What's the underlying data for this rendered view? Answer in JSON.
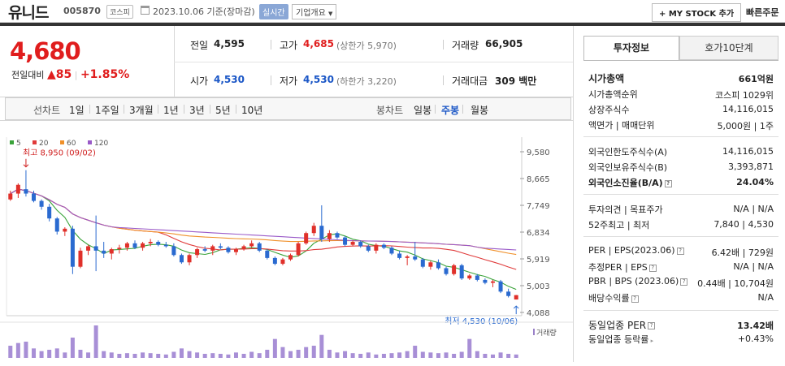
{
  "header": {
    "name": "유니드",
    "code": "005870",
    "market": "코스피",
    "date": "2023.10.06 기준(장마감)",
    "realtime": "실시간",
    "company": "기업개요",
    "mystock": "+ MY STOCK 추가",
    "quick": "빠른주문"
  },
  "price": {
    "current": "4,680",
    "diff_label": "전일대비",
    "diff": "▲85",
    "rate": "+1.85%"
  },
  "summary": {
    "prev_label": "전일",
    "prev": "4,595",
    "high_label": "고가",
    "high": "4,685",
    "upper": "(상한가 5,970)",
    "vol_label": "거래량",
    "vol": "66,905",
    "open_label": "시가",
    "open": "4,530",
    "low_label": "저가",
    "low": "4,530",
    "lower": "(하한가 3,220)",
    "amt_label": "거래대금",
    "amt": "309 백만"
  },
  "tabs": {
    "line": "선차트",
    "d1": "1일",
    "w1": "1주일",
    "m3": "3개월",
    "y1": "1년",
    "y3": "3년",
    "y5": "5년",
    "y10": "10년",
    "candle": "봉차트",
    "daily": "일봉",
    "weekly": "주봉",
    "monthly": "월봉"
  },
  "chart_data": {
    "type": "candlestick",
    "legend": [
      "5",
      "20",
      "60",
      "120"
    ],
    "legend_colors": [
      "#3aa33a",
      "#e03a3a",
      "#f0902a",
      "#9a5ac8"
    ],
    "yticks": [
      "9,580",
      "8,665",
      "7,749",
      "6,834",
      "5,919",
      "5,003",
      "4,088"
    ],
    "ylim": [
      4088,
      9580
    ],
    "high_note": "최고 8,950 (09/02)",
    "low_note": "최저 4,530 (10/06)",
    "volume_label": "거래량",
    "candles": [
      [
        7950,
        8250,
        7900,
        8150
      ],
      [
        8150,
        8500,
        8000,
        8450
      ],
      [
        8300,
        8950,
        8050,
        8150
      ],
      [
        8150,
        8250,
        7850,
        7900
      ],
      [
        7900,
        7950,
        7600,
        7700
      ],
      [
        7700,
        7800,
        7200,
        7300
      ],
      [
        7300,
        7350,
        6750,
        6850
      ],
      [
        6850,
        7000,
        6700,
        6950
      ],
      [
        6950,
        7050,
        5400,
        5650
      ],
      [
        5650,
        6300,
        5600,
        6200
      ],
      [
        6200,
        6400,
        6050,
        6350
      ],
      [
        6350,
        7400,
        5500,
        6200
      ],
      [
        6200,
        6500,
        5950,
        6100
      ],
      [
        6100,
        6300,
        5900,
        6250
      ],
      [
        6250,
        6400,
        6100,
        6300
      ],
      [
        6300,
        6500,
        6200,
        6450
      ],
      [
        6450,
        6550,
        6250,
        6300
      ],
      [
        6300,
        6500,
        6200,
        6450
      ],
      [
        6450,
        6600,
        6350,
        6500
      ],
      [
        6500,
        6550,
        6350,
        6400
      ],
      [
        6400,
        6500,
        6300,
        6350
      ],
      [
        6350,
        6450,
        6000,
        6050
      ],
      [
        6050,
        6100,
        5750,
        5800
      ],
      [
        5800,
        6100,
        5700,
        6050
      ],
      [
        6050,
        6300,
        5950,
        6250
      ],
      [
        6250,
        6350,
        6150,
        6200
      ],
      [
        6200,
        6400,
        6050,
        6350
      ],
      [
        6350,
        6450,
        6250,
        6300
      ],
      [
        6300,
        6350,
        6100,
        6150
      ],
      [
        6150,
        6300,
        6050,
        6250
      ],
      [
        6250,
        6400,
        6200,
        6350
      ],
      [
        6350,
        6550,
        6300,
        6450
      ],
      [
        6450,
        6500,
        6150,
        6200
      ],
      [
        6200,
        6250,
        5900,
        5950
      ],
      [
        5950,
        6000,
        5700,
        5750
      ],
      [
        5750,
        5950,
        5700,
        5900
      ],
      [
        5900,
        6100,
        5850,
        6050
      ],
      [
        6050,
        6500,
        6000,
        6450
      ],
      [
        6450,
        6850,
        6400,
        6800
      ],
      [
        6800,
        7150,
        6700,
        7050
      ],
      [
        7050,
        7750,
        6500,
        6600
      ],
      [
        6600,
        6900,
        6500,
        6800
      ],
      [
        6800,
        6850,
        6600,
        6650
      ],
      [
        6650,
        6700,
        6350,
        6400
      ],
      [
        6400,
        6550,
        6350,
        6500
      ],
      [
        6500,
        6550,
        6300,
        6350
      ],
      [
        6350,
        6400,
        6150,
        6200
      ],
      [
        6200,
        6450,
        6100,
        6400
      ],
      [
        6400,
        6450,
        6250,
        6300
      ],
      [
        6300,
        6350,
        6050,
        6100
      ],
      [
        6100,
        6200,
        5900,
        5950
      ],
      [
        5950,
        6050,
        5700,
        6000
      ],
      [
        6000,
        6500,
        5850,
        5900
      ],
      [
        5900,
        5950,
        5600,
        5650
      ],
      [
        5650,
        5850,
        5550,
        5800
      ],
      [
        5800,
        5900,
        5550,
        5600
      ],
      [
        5600,
        5650,
        5350,
        5400
      ],
      [
        5400,
        5750,
        5350,
        5700
      ],
      [
        5700,
        5750,
        5200,
        5250
      ],
      [
        5250,
        5400,
        5200,
        5350
      ],
      [
        5350,
        5400,
        5150,
        5200
      ],
      [
        5200,
        5250,
        5050,
        5100
      ],
      [
        5100,
        5200,
        4950,
        5150
      ],
      [
        5150,
        5200,
        4750,
        4800
      ],
      [
        4800,
        4900,
        4600,
        4650
      ],
      [
        4530,
        4685,
        4530,
        4680
      ]
    ],
    "volume": [
      18,
      22,
      24,
      14,
      10,
      12,
      14,
      8,
      30,
      12,
      8,
      48,
      10,
      8,
      6,
      7,
      6,
      8,
      7,
      6,
      5,
      9,
      14,
      10,
      8,
      6,
      7,
      6,
      5,
      8,
      6,
      9,
      7,
      12,
      28,
      16,
      10,
      12,
      16,
      18,
      34,
      12,
      8,
      10,
      7,
      6,
      8,
      5,
      6,
      7,
      8,
      10,
      18,
      9,
      8,
      7,
      8,
      6,
      9,
      28,
      10,
      6,
      5,
      8,
      6,
      5
    ]
  },
  "info": {
    "tab1": "투자정보",
    "tab2": "호가10단계",
    "mcap_label": "시가총액",
    "mcap": "661억원",
    "rank_label": "시가총액순위",
    "rank": "코스피 1029위",
    "shares_label": "상장주식수",
    "shares": "14,116,015",
    "par_label": "액면가 | 매매단위",
    "par": "5,000원 | 1주",
    "frn_limit_label": "외국인한도주식수(A)",
    "frn_limit": "14,116,015",
    "frn_hold_label": "외국인보유주식수(B)",
    "frn_hold": "3,393,871",
    "frn_ratio_label": "외국인소진율(B/A)",
    "frn_ratio": "24.04%",
    "opinion_label": "투자의견 | 목표주가",
    "opinion": "N/A | N/A",
    "w52_label": "52주최고 | 최저",
    "w52": "7,840 | 4,530",
    "per_label": "PER | EPS(2023.06)",
    "per": "6.42배 | 729원",
    "eper_label": "추정PER | EPS",
    "eper": "N/A | N/A",
    "pbr_label": "PBR | BPS (2023.06)",
    "pbr": "0.44배 | 10,704원",
    "div_label": "배당수익률",
    "div": "N/A",
    "ind_per_label": "동일업종 PER",
    "ind_per": "13.42배",
    "ind_rate_label": "동일업종 등락률",
    "ind_rate": "+0.43%"
  }
}
